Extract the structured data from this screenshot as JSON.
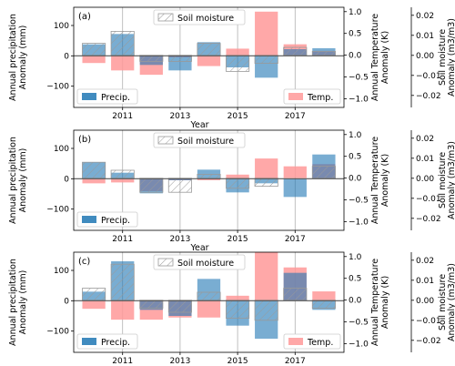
{
  "colors": {
    "precip": "#1f77b4",
    "temp": "#ff9999",
    "soil_edge": "#999999",
    "grid": "#b0b0b0"
  },
  "chart_data": [
    {
      "type": "bar",
      "panel_label": "(a)",
      "x": [
        2010,
        2011,
        2012,
        2013,
        2014,
        2015,
        2016,
        2017,
        2018
      ],
      "x_tick_values": [
        2011,
        2013,
        2015,
        2017
      ],
      "x_tick_labels": [
        "2011",
        "2013",
        "2015",
        "2017"
      ],
      "xlabel": "Year",
      "grid": true,
      "legend_placement": {
        "precip": "bottom-left",
        "temp": "bottom-right",
        "soil": "top-center"
      },
      "axes": [
        {
          "side": "left",
          "label": [
            "Annual precipitation",
            "Anomaly (mm)"
          ],
          "ylim": [
            -170,
            160
          ],
          "ticks": [
            -100,
            0,
            100
          ],
          "tick_labels": [
            "−100",
            "0",
            "100"
          ]
        },
        {
          "side": "right",
          "label": [
            "Annual Temperature",
            "Anomaly (K)"
          ],
          "ylim": [
            -1.2,
            1.1
          ],
          "ticks": [
            -1.0,
            -0.5,
            0.0,
            0.5,
            1.0
          ],
          "tick_labels": [
            "−1.0",
            "−0.5",
            "0.0",
            "0.5",
            "1.0"
          ]
        },
        {
          "side": "right-outer",
          "label": [
            "Soil moisture",
            "Anomaly (m3/m3)"
          ],
          "ylim": [
            -0.026,
            0.024
          ],
          "ticks": [
            -0.02,
            -0.01,
            0.0,
            0.01,
            0.02
          ],
          "tick_labels": [
            "−0.02",
            "−0.01",
            "0.00",
            "0.01",
            "0.02"
          ]
        }
      ],
      "series": [
        {
          "name": "Precip.",
          "axis": 0,
          "values": [
            38,
            72,
            -30,
            -48,
            45,
            -38,
            -72,
            22,
            25
          ]
        },
        {
          "name": "Temp.",
          "axis": 1,
          "values": [
            -0.18,
            -0.35,
            -0.45,
            -0.05,
            -0.25,
            0.15,
            1.0,
            0.25,
            0.1
          ]
        },
        {
          "name": "Soil moisture",
          "axis": 2,
          "values": [
            0.006,
            0.012,
            -0.003,
            -0.003,
            0.006,
            -0.008,
            -0.004,
            0.004,
            0.002
          ]
        }
      ]
    },
    {
      "type": "bar",
      "panel_label": "(b)",
      "x": [
        2010,
        2011,
        2012,
        2013,
        2014,
        2015,
        2016,
        2017,
        2018
      ],
      "x_tick_values": [
        2011,
        2013,
        2015,
        2017
      ],
      "x_tick_labels": [
        "2011",
        "2013",
        "2015",
        "2017"
      ],
      "xlabel": "Year",
      "grid": true,
      "legend_placement": {
        "precip": "bottom-left",
        "temp": "",
        "soil": "top-center"
      },
      "axes": [
        {
          "side": "left",
          "label": [
            "Annual precipitation",
            "Anomaly (mm)"
          ],
          "ylim": [
            -170,
            160
          ],
          "ticks": [
            -100,
            0,
            100
          ],
          "tick_labels": [
            "−100",
            "0",
            "100"
          ]
        },
        {
          "side": "right",
          "label": [
            "Annual Temperature",
            "Anomaly (K)"
          ],
          "ylim": [
            -1.2,
            1.1
          ],
          "ticks": [
            -1.0,
            -0.5,
            0.0,
            0.5,
            1.0
          ],
          "tick_labels": [
            "−1.0",
            "−0.5",
            "0.0",
            "0.5",
            "1.0"
          ]
        },
        {
          "side": "right-outer",
          "label": [
            "Soil moisture",
            "Anomaly (m3/m3)"
          ],
          "ylim": [
            -0.026,
            0.024
          ],
          "ticks": [
            -0.02,
            -0.01,
            0.0,
            0.01,
            0.02
          ],
          "tick_labels": [
            "−0.02",
            "−0.01",
            "0.00",
            "0.01",
            "0.02"
          ]
        }
      ],
      "series": [
        {
          "name": "Precip.",
          "axis": 0,
          "values": [
            55,
            20,
            -48,
            -5,
            30,
            -45,
            -15,
            -60,
            80
          ]
        },
        {
          "name": "Temp.",
          "axis": 1,
          "values": [
            -0.12,
            -0.1,
            -0.3,
            -0.05,
            -0.05,
            0.08,
            0.45,
            0.27,
            0.32
          ]
        },
        {
          "name": "Soil moisture",
          "axis": 2,
          "values": [
            0.008,
            0.004,
            -0.007,
            -0.007,
            0.002,
            -0.005,
            -0.004,
            0.0,
            0.006
          ]
        }
      ]
    },
    {
      "type": "bar",
      "panel_label": "(c)",
      "x": [
        2010,
        2011,
        2012,
        2013,
        2014,
        2015,
        2016,
        2017,
        2018
      ],
      "x_tick_values": [
        2011,
        2013,
        2015,
        2017
      ],
      "x_tick_labels": [
        "2011",
        "2013",
        "2015",
        "2017"
      ],
      "xlabel": "Year",
      "grid": true,
      "legend_placement": {
        "precip": "bottom-left",
        "temp": "bottom-right",
        "soil": "top-center"
      },
      "axes": [
        {
          "side": "left",
          "label": [
            "Annual precipitation",
            "Anomaly (mm)"
          ],
          "ylim": [
            -170,
            160
          ],
          "ticks": [
            -100,
            0,
            100
          ],
          "tick_labels": [
            "−100",
            "0",
            "100"
          ]
        },
        {
          "side": "right",
          "label": [
            "Annual Temperature",
            "Anomaly (K)"
          ],
          "ylim": [
            -1.2,
            1.1
          ],
          "ticks": [
            -1.0,
            -0.5,
            0.0,
            0.5,
            1.0
          ],
          "tick_labels": [
            "−1.0",
            "−0.5",
            "0.0",
            "0.5",
            "1.0"
          ]
        },
        {
          "side": "right-outer",
          "label": [
            "Soil moisture",
            "Anomaly (m3/m3)"
          ],
          "ylim": [
            -0.026,
            0.024
          ],
          "ticks": [
            -0.02,
            -0.01,
            0.0,
            0.01,
            0.02
          ],
          "tick_labels": [
            "−0.02",
            "−0.01",
            "0.00",
            "0.01",
            "0.02"
          ]
        }
      ],
      "series": [
        {
          "name": "Precip.",
          "axis": 0,
          "values": [
            30,
            130,
            -30,
            -50,
            72,
            -82,
            -125,
            92,
            -30
          ]
        },
        {
          "name": "Temp.",
          "axis": 1,
          "values": [
            -0.2,
            -0.45,
            -0.45,
            -0.4,
            -0.4,
            0.1,
            1.1,
            0.75,
            0.2
          ]
        },
        {
          "name": "Soil moisture",
          "axis": 2,
          "values": [
            0.006,
            0.018,
            -0.004,
            -0.006,
            0.004,
            -0.009,
            -0.01,
            0.006,
            -0.004
          ]
        }
      ]
    }
  ]
}
